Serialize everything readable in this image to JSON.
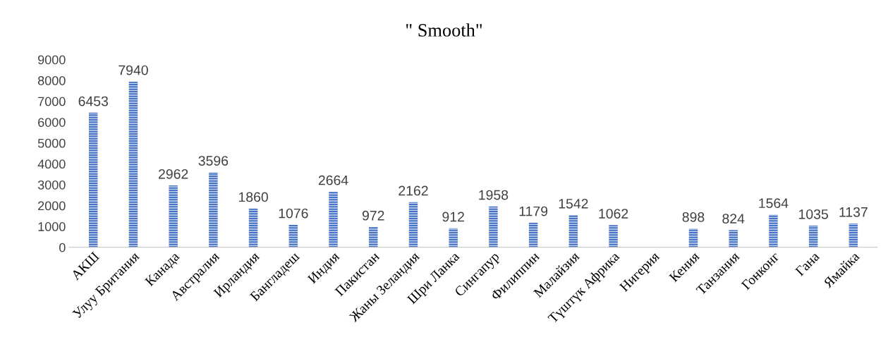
{
  "chart_data": {
    "type": "bar",
    "title": "\" Smooth\"",
    "categories": [
      "АКШ",
      "Улуу Британия",
      "Канада",
      "Австралия",
      "Ирландия",
      "Бангладеш",
      "Индия",
      "Пакистан",
      "Жаны Зеландия",
      "Шри Ланка",
      "Сингапур",
      "Филиппин",
      "Малайзия",
      "Түштүк Африка",
      "Нигерия",
      "Кения",
      "Танзания",
      "Гонконг",
      "Гана",
      "Ямайка"
    ],
    "values": [
      6453,
      7940,
      2962,
      3596,
      1860,
      1076,
      2664,
      972,
      2162,
      912,
      1958,
      1179,
      1542,
      1062,
      null,
      898,
      824,
      1564,
      1035,
      1137
    ],
    "color": "#4472c4",
    "ylim": [
      0,
      9000
    ],
    "yticks": [
      0,
      1000,
      2000,
      3000,
      4000,
      5000,
      6000,
      7000,
      8000,
      9000
    ],
    "grid": false,
    "data_labels": true
  }
}
